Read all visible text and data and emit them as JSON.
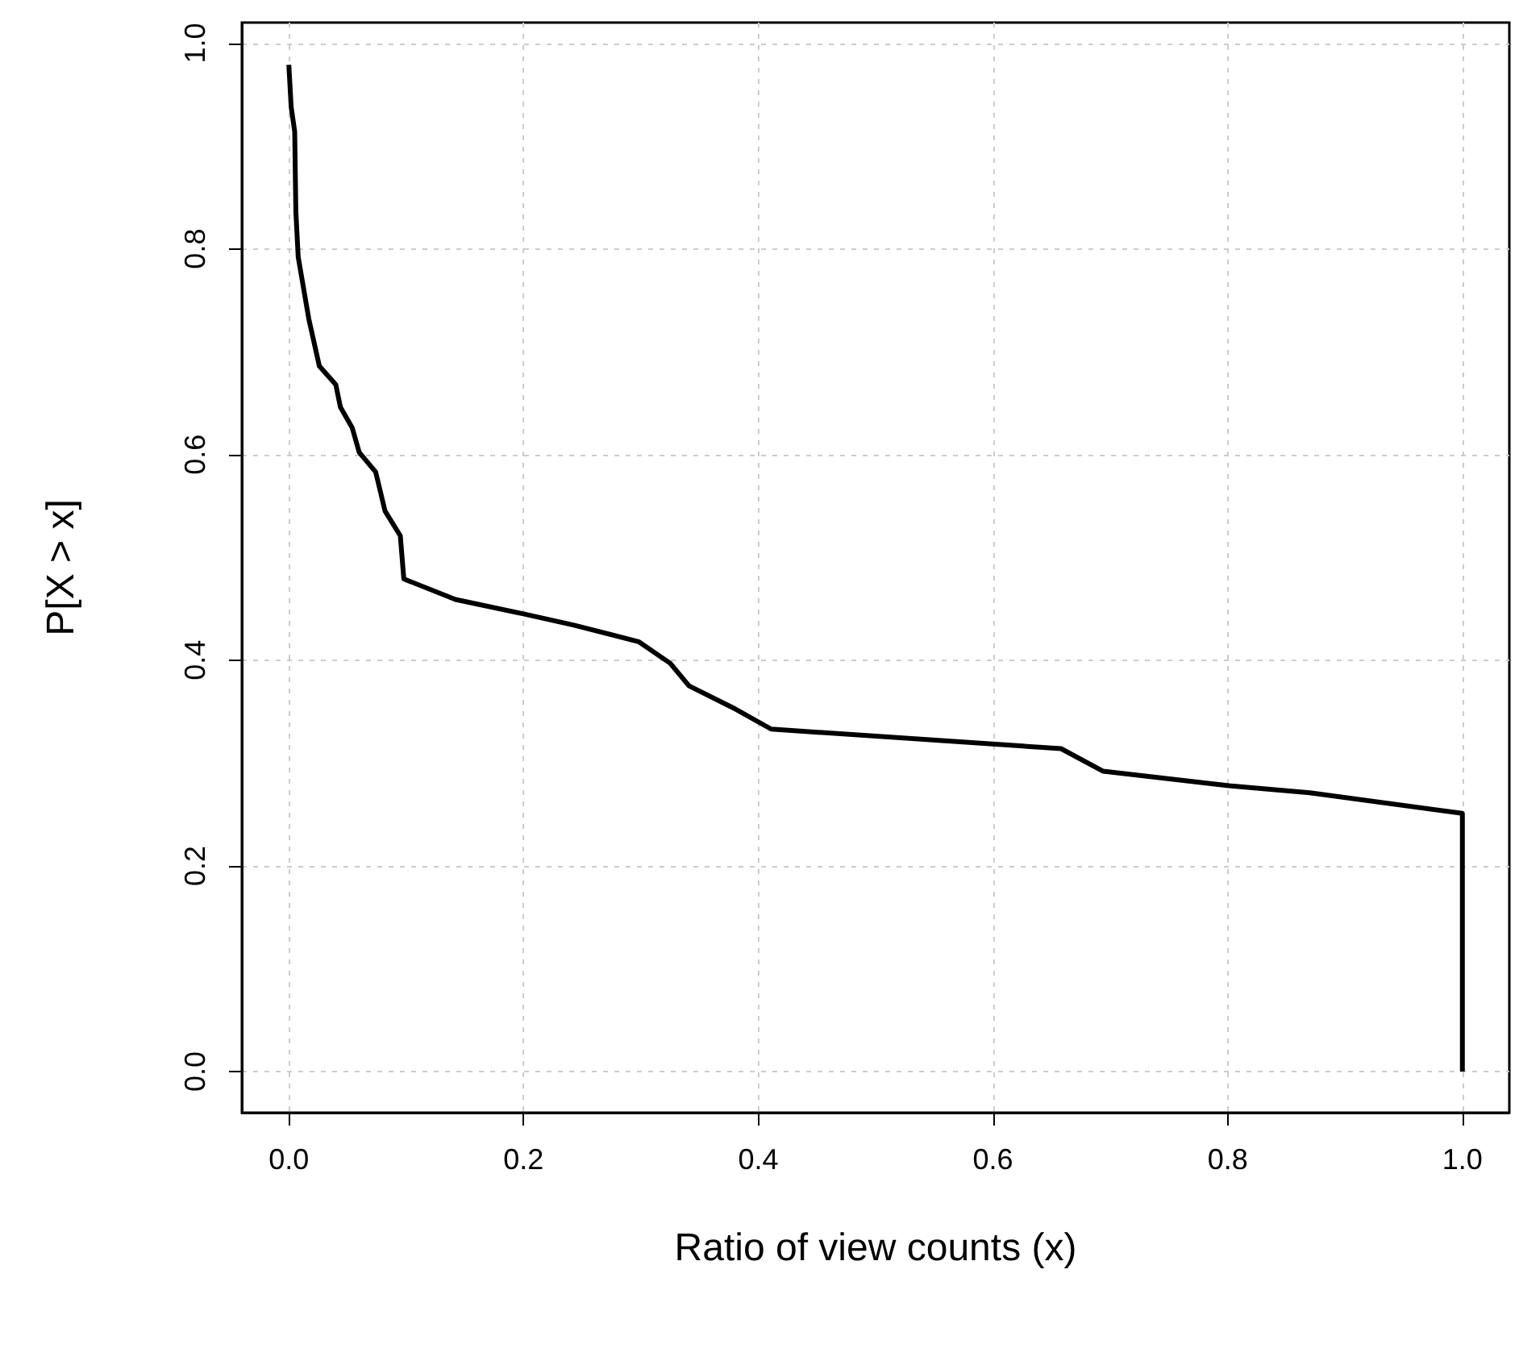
{
  "chart_data": {
    "type": "line",
    "xlabel": "Ratio of view counts (x)",
    "ylabel": "P[X > x]",
    "x": [
      0.0,
      0.002,
      0.005,
      0.006,
      0.008,
      0.017,
      0.026,
      0.04,
      0.044,
      0.054,
      0.06,
      0.074,
      0.082,
      0.095,
      0.098,
      0.142,
      0.2,
      0.243,
      0.298,
      0.325,
      0.341,
      0.378,
      0.411,
      0.658,
      0.694,
      0.801,
      0.87,
      1.0,
      1.0
    ],
    "series": [
      {
        "color": "#000000",
        "values": [
          0.979,
          0.938,
          0.914,
          0.836,
          0.792,
          0.732,
          0.686,
          0.668,
          0.646,
          0.626,
          0.602,
          0.583,
          0.545,
          0.521,
          0.479,
          0.459,
          0.445,
          0.434,
          0.418,
          0.397,
          0.375,
          0.354,
          0.333,
          0.314,
          0.292,
          0.278,
          0.271,
          0.251,
          0.0
        ]
      }
    ],
    "xlim": [
      -0.04,
      1.04
    ],
    "ylim": [
      -0.04,
      1.02
    ],
    "xticks": [
      {
        "value": 0,
        "label": "0.0"
      },
      {
        "value": 0.2,
        "label": "0.2"
      },
      {
        "value": 0.4,
        "label": "0.4"
      },
      {
        "value": 0.6,
        "label": "0.6"
      },
      {
        "value": 0.8,
        "label": "0.8"
      },
      {
        "value": 1,
        "label": "1.0"
      }
    ],
    "yticks": [
      {
        "value": 0,
        "label": "0.0"
      },
      {
        "value": 0.2,
        "label": "0.2"
      },
      {
        "value": 0.4,
        "label": "0.4"
      },
      {
        "value": 0.6,
        "label": "0.6"
      },
      {
        "value": 0.8,
        "label": "0.8"
      },
      {
        "value": 1,
        "label": "1.0"
      }
    ],
    "grid": true,
    "line_style": "solid"
  }
}
